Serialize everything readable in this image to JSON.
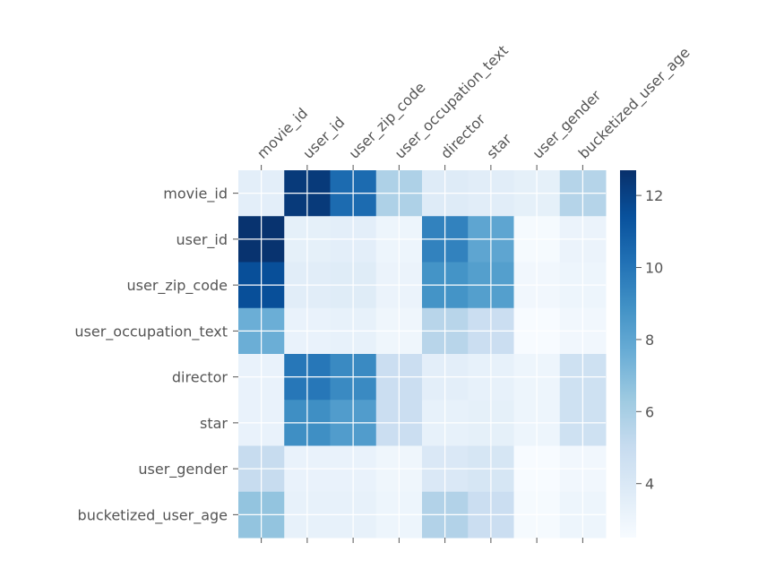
{
  "chart_data": {
    "type": "heatmap",
    "title": "",
    "xlabel": "",
    "ylabel": "",
    "categories": [
      "movie_id",
      "user_id",
      "user_zip_code",
      "user_occupation_text",
      "director",
      "star",
      "user_gender",
      "bucketized_user_age"
    ],
    "values": [
      [
        3.5,
        12.3,
        10.4,
        5.8,
        3.8,
        3.6,
        3.4,
        5.6
      ],
      [
        12.6,
        3.4,
        3.5,
        3.0,
        9.5,
        8.0,
        2.6,
        3.1
      ],
      [
        11.5,
        3.6,
        3.7,
        3.1,
        8.8,
        8.3,
        2.8,
        3.0
      ],
      [
        7.6,
        3.2,
        3.3,
        2.9,
        5.5,
        4.8,
        2.5,
        2.8
      ],
      [
        3.2,
        9.9,
        9.2,
        4.8,
        3.5,
        3.3,
        3.0,
        4.6
      ],
      [
        3.2,
        9.0,
        8.4,
        4.8,
        3.3,
        3.4,
        3.0,
        4.6
      ],
      [
        5.0,
        3.2,
        3.2,
        2.9,
        4.0,
        4.2,
        2.5,
        2.8
      ],
      [
        6.6,
        3.3,
        3.3,
        3.0,
        5.7,
        4.8,
        2.6,
        3.0
      ]
    ],
    "vmin": 2.5,
    "vmax": 12.7,
    "colormap": [
      "#f7fbff",
      "#deebf7",
      "#c6dbef",
      "#9ecae1",
      "#6baed6",
      "#4292c6",
      "#2171b5",
      "#08519c",
      "#08306b"
    ],
    "colorbar": {
      "ticks": [
        4,
        6,
        8,
        10,
        12
      ],
      "tick_labels": [
        "4",
        "6",
        "8",
        "10",
        "12"
      ]
    },
    "grid": true,
    "grid_color": "#ffffff"
  }
}
